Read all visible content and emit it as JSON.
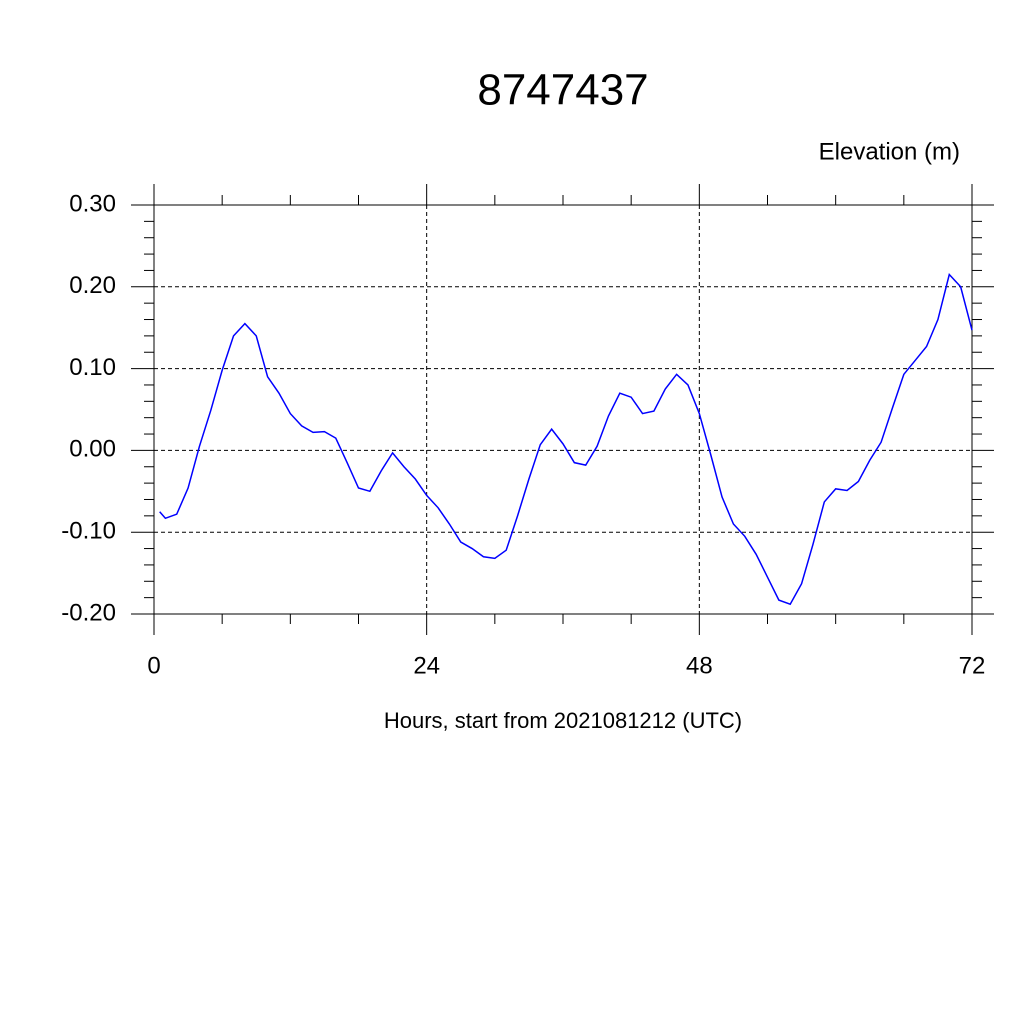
{
  "chart_data": {
    "type": "line",
    "title": "8747437",
    "ylabel": "Elevation (m)",
    "xlabel": "Hours, start from 2021081212 (UTC)",
    "x": [
      0.5,
      1,
      2,
      3,
      4,
      5,
      6,
      7,
      8,
      9,
      10,
      11,
      12,
      13,
      14,
      15,
      16,
      17,
      18,
      19,
      20,
      21,
      22,
      23,
      24,
      25,
      26,
      27,
      28,
      29,
      30,
      31,
      32,
      33,
      34,
      35,
      36,
      37,
      38,
      39,
      40,
      41,
      42,
      43,
      44,
      45,
      46,
      47,
      48,
      49,
      50,
      51,
      52,
      53,
      54,
      55,
      56,
      57,
      58,
      59,
      60,
      61,
      62,
      63,
      64,
      65,
      66,
      67,
      68,
      69,
      70,
      71,
      72
    ],
    "series": [
      {
        "name": "Elevation",
        "color": "#0000ff",
        "values": [
          -0.075,
          -0.083,
          -0.078,
          -0.046,
          0.005,
          0.049,
          0.098,
          0.14,
          0.155,
          0.14,
          0.09,
          0.07,
          0.045,
          0.03,
          0.022,
          0.023,
          0.015,
          -0.015,
          -0.046,
          -0.05,
          -0.025,
          -0.003,
          -0.02,
          -0.035,
          -0.055,
          -0.07,
          -0.09,
          -0.112,
          -0.12,
          -0.13,
          -0.132,
          -0.122,
          -0.08,
          -0.035,
          0.007,
          0.026,
          0.008,
          -0.015,
          -0.018,
          0.005,
          0.042,
          0.07,
          0.065,
          0.045,
          0.048,
          0.075,
          0.093,
          0.08,
          0.045,
          -0.005,
          -0.057,
          -0.09,
          -0.105,
          -0.127,
          -0.155,
          -0.183,
          -0.188,
          -0.163,
          -0.115,
          -0.063,
          -0.047,
          -0.049,
          -0.038,
          -0.012,
          0.01,
          0.052,
          0.093,
          0.11,
          0.127,
          0.16,
          0.215,
          0.2,
          0.147
        ]
      }
    ],
    "xlim": [
      0,
      72
    ],
    "xticks": [
      0,
      24,
      48,
      72
    ],
    "ylim": [
      -0.2,
      0.3
    ],
    "yticks": [
      {
        "value": 0.3,
        "label": "0.30"
      },
      {
        "value": 0.2,
        "label": "0.20"
      },
      {
        "value": 0.1,
        "label": "0.10"
      },
      {
        "value": 0,
        "label": "0.00"
      },
      {
        "value": -0.1,
        "label": "-0.10"
      },
      {
        "value": -0.2,
        "label": "-0.20"
      }
    ],
    "grid": true
  }
}
